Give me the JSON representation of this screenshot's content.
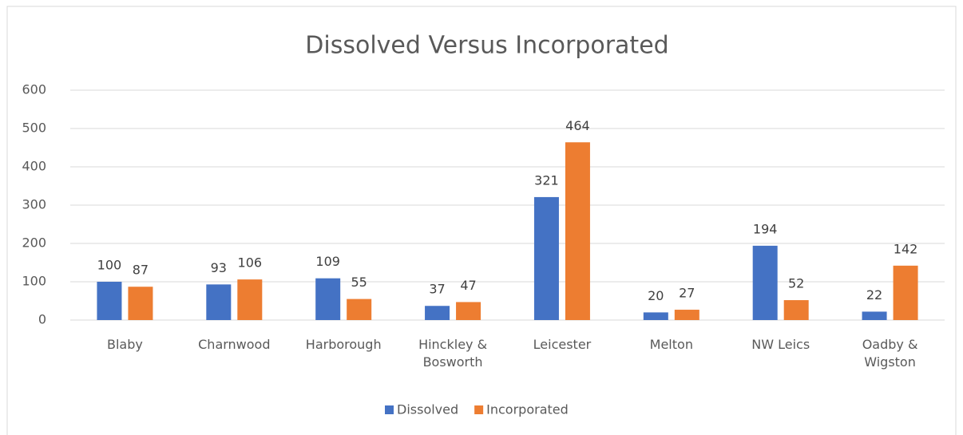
{
  "chart_data": {
    "type": "bar",
    "title": "Dissolved Versus Incorporated",
    "categories": [
      "Blaby",
      "Charnwood",
      "Harborough",
      "Hinckley & Bosworth",
      "Leicester",
      "Melton",
      "NW Leics",
      "Oadby & Wigston"
    ],
    "series": [
      {
        "name": "Dissolved",
        "color": "#4472c4",
        "values": [
          100,
          93,
          109,
          37,
          321,
          20,
          194,
          22
        ]
      },
      {
        "name": "Incorporated",
        "color": "#ed7d31",
        "values": [
          87,
          106,
          55,
          47,
          464,
          27,
          52,
          142
        ]
      }
    ],
    "ylim": [
      0,
      600
    ],
    "yticks": [
      0,
      100,
      200,
      300,
      400,
      500,
      600
    ],
    "grid": true,
    "legend": "bottom"
  }
}
